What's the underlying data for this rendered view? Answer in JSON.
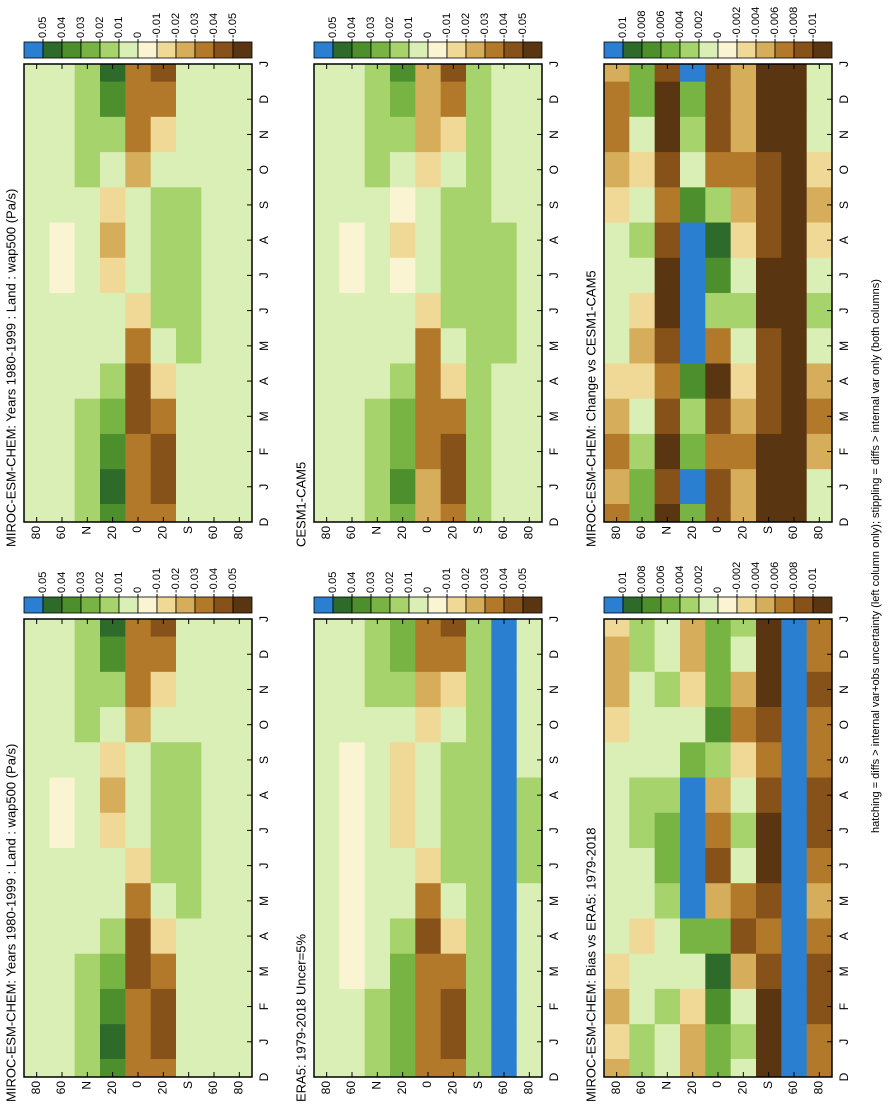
{
  "footnote": "hatching = diffs > internal var+obs uncertainty (left column only); stippling = diffs > internal var only (both columns)",
  "ylim": [
    90,
    -90
  ],
  "months": [
    "D",
    "J",
    "F",
    "M",
    "A",
    "M",
    "J",
    "J",
    "A",
    "S",
    "O",
    "N",
    "D",
    "J"
  ],
  "lat_ticks": [
    80,
    60,
    {
      "value": 40,
      "label": "N"
    },
    20,
    0,
    {
      "value": -20,
      "label": "20"
    },
    {
      "value": -40,
      "label": "S"
    },
    {
      "value": -60,
      "label": "60"
    },
    {
      "value": -80,
      "label": "80"
    }
  ],
  "field_lats": [
    80,
    60,
    40,
    20,
    0,
    -20,
    -40,
    -60,
    -80
  ],
  "colors": [
    "#2a7fd0",
    "#2e6b2a",
    "#4c8f2c",
    "#78b443",
    "#a7d36c",
    "#d9efb6",
    "#fbf4d3",
    "#f0d996",
    "#d6ad5a",
    "#b2792b",
    "#865219",
    "#5a3511"
  ],
  "panels": [
    {
      "title": "MIROC-ESM-CHEM: Years 1980-1999 : Land : wap500 (Pa/s)",
      "colorbar_ticks": [
        0.05,
        0.04,
        0.03,
        0.02,
        0.01,
        0,
        -0.01,
        -0.02,
        -0.03,
        -0.04,
        -0.05
      ],
      "rows": [
        [
          0.005,
          0.005,
          0.005,
          0.005,
          0.005,
          0.002,
          0.002,
          0.002,
          0.005,
          0.005,
          0.005,
          0.005
        ],
        [
          0.01,
          0.01,
          0.005,
          0.002,
          0.002,
          0.002,
          -0.005,
          -0.005,
          0.002,
          0.005,
          0.01,
          0.01
        ],
        [
          0.02,
          0.02,
          0.015,
          0.01,
          0.005,
          0.005,
          0.01,
          0.01,
          0.01,
          0.015,
          0.02,
          0.02
        ],
        [
          0.045,
          0.04,
          0.03,
          0.02,
          0.01,
          0.002,
          -0.01,
          -0.02,
          -0.01,
          0.01,
          0.02,
          0.035
        ],
        [
          -0.03,
          -0.035,
          -0.04,
          -0.045,
          -0.035,
          -0.01,
          0.01,
          0.01,
          0.002,
          -0.02,
          -0.03,
          -0.03
        ],
        [
          -0.045,
          -0.045,
          -0.035,
          -0.015,
          0.01,
          0.02,
          0.02,
          0.02,
          0.015,
          0.01,
          -0.015,
          -0.035
        ],
        [
          0.01,
          0.01,
          0.01,
          0.01,
          0.015,
          0.02,
          0.02,
          0.02,
          0.015,
          0.01,
          0.01,
          0.01
        ],
        [
          0.002,
          0.002,
          0.002,
          0.005,
          0.005,
          0.005,
          0.005,
          0.005,
          0.002,
          0.002,
          0.002,
          0.002
        ],
        [
          0.005,
          0.005,
          0.005,
          0.005,
          0.005,
          0.01,
          0.01,
          0.01,
          0.005,
          0.005,
          0.005,
          0.005
        ]
      ]
    },
    {
      "title": "ERA5: 1979-2018 Uncer=5%",
      "colorbar_ticks": [
        0.05,
        0.04,
        0.03,
        0.02,
        0.01,
        0,
        -0.01,
        -0.02,
        -0.03,
        -0.04,
        -0.05
      ],
      "rows": [
        [
          0.005,
          0.005,
          0.005,
          0.005,
          0.002,
          0.002,
          0.002,
          0.002,
          0.005,
          0.005,
          0.005,
          0.005
        ],
        [
          0.002,
          0.002,
          -0.002,
          -0.005,
          -0.005,
          -0.005,
          -0.005,
          -0.005,
          -0.002,
          0.002,
          0.002,
          0.002
        ],
        [
          0.015,
          0.015,
          0.01,
          0.01,
          0.005,
          0.005,
          0.005,
          0.005,
          0.01,
          0.01,
          0.015,
          0.015
        ],
        [
          0.03,
          0.03,
          0.025,
          0.02,
          0.01,
          0.002,
          -0.01,
          -0.015,
          -0.01,
          0.005,
          0.02,
          0.03
        ],
        [
          -0.03,
          -0.035,
          -0.035,
          -0.04,
          -0.03,
          -0.01,
          0.005,
          0.01,
          0.002,
          -0.015,
          -0.025,
          -0.03
        ],
        [
          -0.04,
          -0.04,
          -0.03,
          -0.015,
          0.005,
          0.015,
          0.02,
          0.02,
          0.015,
          0.005,
          -0.01,
          -0.03
        ],
        [
          0.015,
          0.015,
          0.015,
          0.02,
          0.02,
          0.02,
          0.02,
          0.02,
          0.02,
          0.015,
          0.015,
          0.015
        ],
        [
          0.06,
          0.06,
          0.06,
          0.06,
          0.06,
          0.06,
          0.06,
          0.06,
          0.06,
          0.06,
          0.06,
          0.06
        ],
        [
          0.01,
          0.01,
          0.01,
          0.01,
          0.01,
          0.015,
          0.015,
          0.015,
          0.01,
          0.01,
          0.01,
          0.01
        ]
      ]
    },
    {
      "title": "MIROC-ESM-CHEM: Bias vs ERA5: 1979-2018",
      "colorbar_ticks": [
        0.01,
        0.008,
        0.006,
        0.004,
        0.002,
        0,
        -0.002,
        -0.004,
        -0.006,
        -0.008,
        -0.01
      ],
      "rows": [
        [
          -0.002,
          -0.004,
          -0.002,
          0.001,
          0.002,
          0.002,
          0.002,
          0.002,
          0.001,
          -0.002,
          -0.004,
          -0.004
        ],
        [
          0.004,
          0.002,
          0.001,
          -0.002,
          0.001,
          0.002,
          0.004,
          0.004,
          0.002,
          0.001,
          0.002,
          0.004
        ],
        [
          0.002,
          0.004,
          0.002,
          0.002,
          0.004,
          0.006,
          0.006,
          0.004,
          0.002,
          0.002,
          0.004,
          0.002
        ],
        [
          -0.004,
          -0.002,
          0.002,
          0.006,
          0.011,
          0.012,
          0.012,
          0.011,
          0.006,
          0.002,
          -0.002,
          -0.004
        ],
        [
          0.006,
          0.008,
          0.009,
          0.006,
          -0.004,
          -0.008,
          -0.006,
          -0.004,
          0.004,
          0.008,
          0.006,
          0.006
        ],
        [
          0.004,
          0.002,
          -0.004,
          -0.008,
          -0.006,
          0.002,
          0.004,
          0.002,
          -0.002,
          -0.006,
          -0.004,
          0.002
        ],
        [
          -0.011,
          -0.011,
          -0.009,
          -0.006,
          -0.009,
          -0.011,
          -0.011,
          -0.009,
          -0.006,
          -0.009,
          -0.011,
          -0.011
        ],
        [
          0.012,
          0.012,
          0.012,
          0.012,
          0.012,
          0.012,
          0.012,
          0.012,
          0.012,
          0.012,
          0.012,
          0.012
        ],
        [
          -0.006,
          -0.009,
          -0.009,
          -0.006,
          -0.004,
          -0.006,
          -0.009,
          -0.009,
          -0.006,
          -0.006,
          -0.009,
          -0.006
        ]
      ]
    },
    {
      "title": "MIROC-ESM-CHEM: Years 1980-1999 : Land : wap500 (Pa/s)",
      "colorbar_ticks": [
        0.05,
        0.04,
        0.03,
        0.02,
        0.01,
        0,
        -0.01,
        -0.02,
        -0.03,
        -0.04,
        -0.05
      ],
      "rows": [
        [
          0.005,
          0.005,
          0.005,
          0.005,
          0.005,
          0.002,
          0.002,
          0.002,
          0.005,
          0.005,
          0.005,
          0.005
        ],
        [
          0.01,
          0.01,
          0.005,
          0.002,
          0.002,
          0.002,
          -0.005,
          -0.005,
          0.002,
          0.005,
          0.01,
          0.01
        ],
        [
          0.02,
          0.02,
          0.015,
          0.01,
          0.005,
          0.005,
          0.01,
          0.01,
          0.01,
          0.015,
          0.02,
          0.02
        ],
        [
          0.045,
          0.04,
          0.03,
          0.02,
          0.01,
          0.002,
          -0.01,
          -0.02,
          -0.01,
          0.01,
          0.02,
          0.035
        ],
        [
          -0.03,
          -0.035,
          -0.04,
          -0.045,
          -0.035,
          -0.01,
          0.01,
          0.01,
          0.002,
          -0.02,
          -0.03,
          -0.03
        ],
        [
          -0.045,
          -0.045,
          -0.035,
          -0.015,
          0.01,
          0.02,
          0.02,
          0.02,
          0.015,
          0.01,
          -0.015,
          -0.035
        ],
        [
          0.01,
          0.01,
          0.01,
          0.01,
          0.015,
          0.02,
          0.02,
          0.02,
          0.015,
          0.01,
          0.01,
          0.01
        ],
        [
          0.002,
          0.002,
          0.002,
          0.005,
          0.005,
          0.005,
          0.005,
          0.005,
          0.002,
          0.002,
          0.002,
          0.002
        ],
        [
          0.005,
          0.005,
          0.005,
          0.005,
          0.005,
          0.01,
          0.01,
          0.01,
          0.005,
          0.005,
          0.005,
          0.005
        ]
      ]
    },
    {
      "title": "CESM1-CAM5",
      "colorbar_ticks": [
        0.05,
        0.04,
        0.03,
        0.02,
        0.01,
        0,
        -0.01,
        -0.02,
        -0.03,
        -0.04,
        -0.05
      ],
      "rows": [
        [
          0.005,
          0.005,
          0.005,
          0.005,
          0.002,
          0.002,
          0.002,
          0.002,
          0.005,
          0.005,
          0.005,
          0.005
        ],
        [
          0.005,
          0.005,
          0.002,
          0.002,
          0.002,
          0.002,
          -0.002,
          -0.002,
          0.002,
          0.002,
          0.005,
          0.005
        ],
        [
          0.015,
          0.015,
          0.015,
          0.01,
          0.01,
          0.01,
          0.01,
          0.01,
          0.01,
          0.015,
          0.015,
          0.015
        ],
        [
          0.035,
          0.03,
          0.025,
          0.02,
          0.01,
          0.005,
          -0.005,
          -0.01,
          -0.005,
          0.01,
          0.02,
          0.03
        ],
        [
          -0.025,
          -0.03,
          -0.03,
          -0.035,
          -0.03,
          -0.015,
          0.005,
          0.005,
          0.002,
          -0.015,
          -0.02,
          -0.025
        ],
        [
          -0.04,
          -0.04,
          -0.03,
          -0.015,
          0.005,
          0.015,
          0.02,
          0.02,
          0.015,
          0.005,
          -0.01,
          -0.03
        ],
        [
          0.015,
          0.015,
          0.015,
          0.015,
          0.02,
          0.02,
          0.02,
          0.02,
          0.02,
          0.015,
          0.015,
          0.015
        ],
        [
          0.01,
          0.01,
          0.01,
          0.01,
          0.015,
          0.015,
          0.015,
          0.015,
          0.01,
          0.01,
          0.01,
          0.01
        ],
        [
          0.01,
          0.01,
          0.01,
          0.01,
          0.01,
          0.01,
          0.01,
          0.01,
          0.01,
          0.01,
          0.01,
          0.01
        ]
      ]
    },
    {
      "title": "MIROC-ESM-CHEM: Change vs CESM1-CAM5",
      "colorbar_ticks": [
        0.01,
        0.008,
        0.006,
        0.004,
        0.002,
        0,
        -0.002,
        -0.004,
        -0.006,
        -0.008,
        -0.01
      ],
      "rows": [
        [
          -0.004,
          -0.006,
          -0.004,
          -0.002,
          0.001,
          0.001,
          0.002,
          0.001,
          -0.002,
          -0.004,
          -0.006,
          -0.006
        ],
        [
          0.006,
          0.004,
          0.002,
          -0.002,
          -0.004,
          -0.002,
          0.002,
          0.004,
          0.002,
          -0.002,
          0.002,
          0.006
        ],
        [
          -0.009,
          -0.011,
          -0.009,
          -0.006,
          -0.009,
          -0.011,
          -0.011,
          -0.009,
          -0.006,
          -0.009,
          -0.011,
          -0.011
        ],
        [
          0.011,
          0.006,
          0.004,
          0.008,
          0.011,
          0.012,
          0.012,
          0.011,
          0.008,
          0.002,
          0.004,
          0.006
        ],
        [
          -0.008,
          -0.006,
          -0.009,
          -0.011,
          -0.006,
          0.004,
          0.008,
          0.009,
          0.004,
          -0.006,
          -0.009,
          -0.008
        ],
        [
          -0.004,
          -0.006,
          -0.004,
          -0.002,
          0.002,
          0.004,
          0.002,
          -0.002,
          -0.004,
          -0.006,
          -0.004,
          -0.004
        ],
        [
          -0.011,
          -0.011,
          -0.009,
          -0.008,
          -0.009,
          -0.011,
          -0.011,
          -0.009,
          -0.008,
          -0.009,
          -0.011,
          -0.011
        ],
        [
          -0.011,
          -0.011,
          -0.011,
          -0.011,
          -0.011,
          -0.011,
          -0.011,
          -0.011,
          -0.011,
          -0.011,
          -0.011,
          -0.011
        ],
        [
          0.002,
          -0.004,
          -0.006,
          -0.004,
          0.002,
          0.004,
          0.002,
          -0.002,
          -0.004,
          -0.002,
          0.002,
          0.002
        ]
      ]
    }
  ]
}
